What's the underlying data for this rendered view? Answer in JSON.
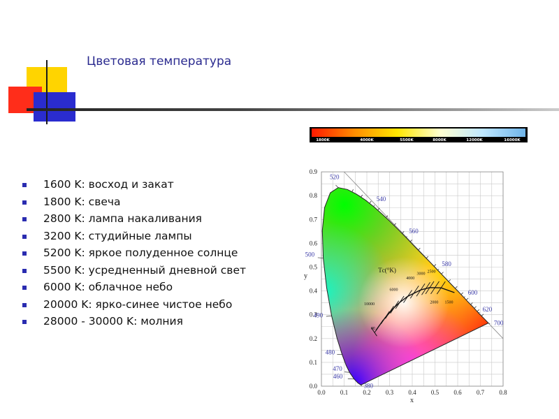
{
  "slide": {
    "title": "Цветовая температура",
    "bullets": [
      "1600 K: восход и закат",
      "1800 K: свеча",
      "2800 K: лампа накаливания",
      "3200 K: студийные лампы",
      "5200 K: яркое полуденное солнце",
      "5500 K: усредненный дневной свет",
      "6000 K: облачное небо",
      "20000 K: ярко-синее чистое небо",
      "28000 - 30000 K: молния"
    ],
    "colors": {
      "title": "#2a2a8f",
      "bullet_marker": "#2a2cb0"
    }
  },
  "temperature_bar": {
    "labels": [
      "1800K",
      "4000K",
      "5500K",
      "8000K",
      "12000K",
      "16000K"
    ],
    "colors": [
      "#ff1a00",
      "#ff8c00",
      "#ffe600",
      "#ffffd0",
      "#bfe7ff",
      "#6fb4e8"
    ]
  },
  "diagram": {
    "x_axis_label": "x",
    "y_axis_label": "y",
    "x_ticks": [
      "0.0",
      "0.1",
      "0.2",
      "0.3",
      "0.4",
      "0.5",
      "0.6",
      "0.7",
      "0.8"
    ],
    "y_ticks": [
      "0.0",
      "0.1",
      "0.2",
      "0.3",
      "0.4",
      "0.5",
      "0.6",
      "0.7",
      "0.8",
      "0.9"
    ],
    "wavelength_labels": [
      {
        "text": "380",
        "x": 0.174,
        "y": 0.005
      },
      {
        "text": "460",
        "x": 0.144,
        "y": 0.03
      },
      {
        "text": "470",
        "x": 0.124,
        "y": 0.058
      },
      {
        "text": "480",
        "x": 0.091,
        "y": 0.133
      },
      {
        "text": "490",
        "x": 0.045,
        "y": 0.295
      },
      {
        "text": "500",
        "x": 0.008,
        "y": 0.538
      },
      {
        "text": "520",
        "x": 0.074,
        "y": 0.834
      },
      {
        "text": "540",
        "x": 0.23,
        "y": 0.754
      },
      {
        "text": "560",
        "x": 0.373,
        "y": 0.624
      },
      {
        "text": "580",
        "x": 0.512,
        "y": 0.487
      },
      {
        "text": "600",
        "x": 0.627,
        "y": 0.373
      },
      {
        "text": "620",
        "x": 0.691,
        "y": 0.308
      },
      {
        "text": "700",
        "x": 0.735,
        "y": 0.265
      }
    ],
    "locus_label": "Tс(°K)",
    "temperature_labels": [
      "10000",
      "6000",
      "4000",
      "3000",
      "2500",
      "2000",
      "1500",
      "∞"
    ]
  }
}
